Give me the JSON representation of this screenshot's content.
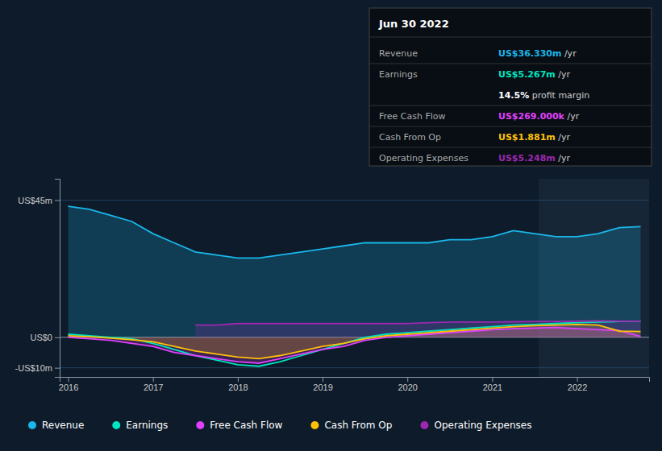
{
  "chart_data": {
    "type": "area",
    "title": "Jun 30 2022",
    "x": [
      2016.0,
      2016.25,
      2016.5,
      2016.75,
      2017.0,
      2017.25,
      2017.5,
      2017.75,
      2018.0,
      2018.25,
      2018.5,
      2018.75,
      2019.0,
      2019.25,
      2019.5,
      2019.75,
      2020.0,
      2020.25,
      2020.5,
      2020.75,
      2021.0,
      2021.25,
      2021.5,
      2021.75,
      2022.0,
      2022.25,
      2022.5,
      2022.75
    ],
    "series": [
      {
        "name": "Revenue",
        "color": "#1ab7ea",
        "type": "area",
        "values": [
          43,
          42,
          40,
          38,
          34,
          31,
          28,
          27,
          26,
          26,
          27,
          28,
          29,
          30,
          31,
          31,
          31,
          31,
          32,
          32,
          33,
          35,
          34,
          33,
          33,
          34,
          36,
          36.3
        ]
      },
      {
        "name": "Earnings",
        "color": "#00e5c0",
        "type": "line",
        "values": [
          1.0,
          0.5,
          0.0,
          -0.5,
          -2.0,
          -4.0,
          -6.0,
          -7.5,
          -9.0,
          -9.5,
          -8.0,
          -6.0,
          -4.0,
          -2.0,
          0.0,
          1.0,
          1.5,
          2.0,
          2.5,
          3.0,
          3.5,
          4.0,
          4.2,
          4.5,
          4.8,
          5.0,
          5.2,
          5.267
        ]
      },
      {
        "name": "Free Cash Flow",
        "color": "#e040fb",
        "type": "area",
        "values": [
          0.0,
          -0.5,
          -1.0,
          -2.0,
          -3.0,
          -5.0,
          -6.0,
          -7.0,
          -8.0,
          -8.5,
          -7.0,
          -5.5,
          -4.0,
          -3.0,
          -1.0,
          0.0,
          0.5,
          1.0,
          1.5,
          2.0,
          2.5,
          2.8,
          3.0,
          3.2,
          2.8,
          2.5,
          2.2,
          0.269
        ]
      },
      {
        "name": "Cash From Op",
        "color": "#ffc107",
        "type": "area",
        "values": [
          0.5,
          0.2,
          -0.3,
          -0.8,
          -1.5,
          -3.0,
          -4.5,
          -5.5,
          -6.5,
          -7.0,
          -6.0,
          -4.5,
          -3.0,
          -2.0,
          -0.5,
          0.5,
          1.0,
          1.5,
          2.0,
          2.5,
          3.0,
          3.5,
          3.8,
          4.0,
          4.2,
          4.0,
          2.0,
          1.881
        ]
      },
      {
        "name": "Operating Expenses",
        "color": "#9c27b0",
        "type": "area",
        "values": [
          null,
          null,
          null,
          null,
          null,
          null,
          4.0,
          4.0,
          4.5,
          4.5,
          4.5,
          4.5,
          4.5,
          4.5,
          4.5,
          4.5,
          4.5,
          4.8,
          5.0,
          5.0,
          5.0,
          5.1,
          5.2,
          5.2,
          5.3,
          5.4,
          5.3,
          5.248
        ]
      }
    ],
    "xlim": [
      2015.9,
      2022.85
    ],
    "xticks": [
      2016,
      2017,
      2018,
      2019,
      2020,
      2021,
      2022
    ],
    "ylim": [
      -13,
      52
    ],
    "yticks": [
      {
        "value": -10,
        "label": "-US$10m"
      },
      {
        "value": 0,
        "label": "US$0"
      },
      {
        "value": 45,
        "label": "US$45m"
      }
    ],
    "grid": true,
    "highlight_x": [
      2021.55,
      2022.85
    ],
    "info_box": {
      "rows": [
        {
          "label": "Revenue",
          "value": "US$36.330m",
          "suffix": " /yr",
          "color": "#1ab7ea"
        },
        {
          "label": "Earnings",
          "value": "US$5.267m",
          "suffix": " /yr",
          "color": "#00e5c0"
        },
        {
          "label": null,
          "value": "14.5%",
          "suffix": " profit margin",
          "color": "#ffffff"
        },
        {
          "label": "Free Cash Flow",
          "value": "US$269.000k",
          "suffix": " /yr",
          "color": "#e040fb"
        },
        {
          "label": "Cash From Op",
          "value": "US$1.881m",
          "suffix": " /yr",
          "color": "#ffc107"
        },
        {
          "label": "Operating Expenses",
          "value": "US$5.248m",
          "suffix": " /yr",
          "color": "#9c27b0"
        }
      ]
    }
  }
}
